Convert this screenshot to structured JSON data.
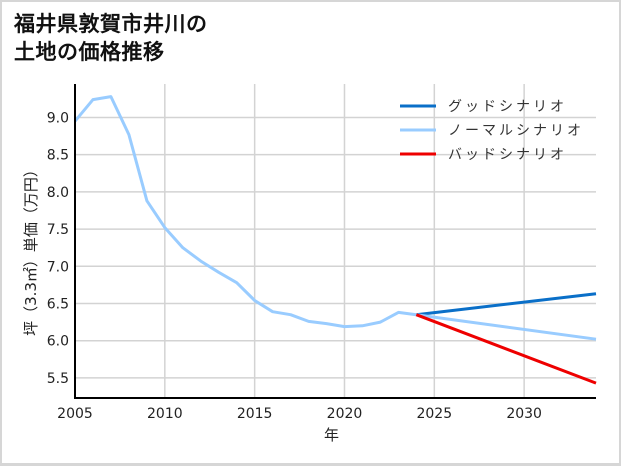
{
  "title": {
    "line1": "福井県敦賀市井川の",
    "line2": "土地の価格推移"
  },
  "chart_data": {
    "type": "line",
    "title": "福井県敦賀市井川の土地の価格推移",
    "xlabel": "年",
    "ylabel": "坪（3.3㎡）単価（万円）",
    "xlim": [
      2005,
      2034
    ],
    "ylim": [
      5.23,
      9.45
    ],
    "x_ticks": [
      2005,
      2010,
      2015,
      2020,
      2025,
      2030
    ],
    "y_ticks": [
      5.5,
      6.0,
      6.5,
      7.0,
      7.5,
      8.0,
      8.5,
      9.0
    ],
    "y_tick_labels": [
      "5.5",
      "6.0",
      "6.5",
      "7.0",
      "7.5",
      "8.0",
      "8.5",
      "9.0"
    ],
    "grid": true,
    "legend_position": "upper right",
    "series": [
      {
        "name": "グッドシナリオ",
        "color": "#0a6fc8",
        "x": [
          2024,
          2034
        ],
        "values": [
          6.35,
          6.63
        ]
      },
      {
        "name": "ノーマルシナリオ",
        "color": "#99ccff",
        "x": [
          2005,
          2006,
          2007,
          2008,
          2009,
          2010,
          2011,
          2012,
          2013,
          2014,
          2015,
          2016,
          2017,
          2018,
          2019,
          2020,
          2021,
          2022,
          2023,
          2024,
          2034
        ],
        "values": [
          8.95,
          9.24,
          9.28,
          8.77,
          7.88,
          7.52,
          7.25,
          7.07,
          6.92,
          6.78,
          6.54,
          6.39,
          6.35,
          6.26,
          6.23,
          6.19,
          6.2,
          6.25,
          6.38,
          6.35,
          6.02
        ]
      },
      {
        "name": "バッドシナリオ",
        "color": "#ee0000",
        "x": [
          2024,
          2034
        ],
        "values": [
          6.35,
          5.43
        ]
      }
    ]
  }
}
